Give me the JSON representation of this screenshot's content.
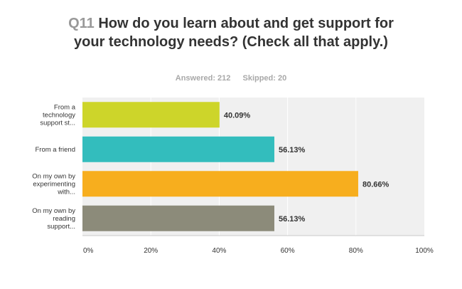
{
  "header": {
    "question_number": "Q11",
    "question_text": "How do you learn about and get support for your technology needs? (Check all that apply.)"
  },
  "summary": {
    "answered": "Answered: 212",
    "skipped": "Skipped: 20"
  },
  "chart_data": {
    "type": "bar",
    "orientation": "horizontal",
    "categories": [
      [
        "From a",
        "technology",
        "support st..."
      ],
      [
        "From a friend"
      ],
      [
        "On my own by",
        "experimenting",
        "with..."
      ],
      [
        "On my own by",
        "reading",
        "support..."
      ]
    ],
    "values": [
      40.09,
      56.13,
      80.66,
      56.13
    ],
    "value_labels": [
      "40.09%",
      "56.13%",
      "80.66%",
      "56.13%"
    ],
    "bar_colors": [
      "#cdd52a",
      "#33bdbd",
      "#f7ae1e",
      "#8c8b7a"
    ],
    "xlim": [
      0,
      100
    ],
    "xticks": [
      "0%",
      "20%",
      "40%",
      "60%",
      "80%",
      "100%"
    ],
    "grid": true,
    "plot_background": "#f0f0f0",
    "grid_color": "#ffffff"
  }
}
